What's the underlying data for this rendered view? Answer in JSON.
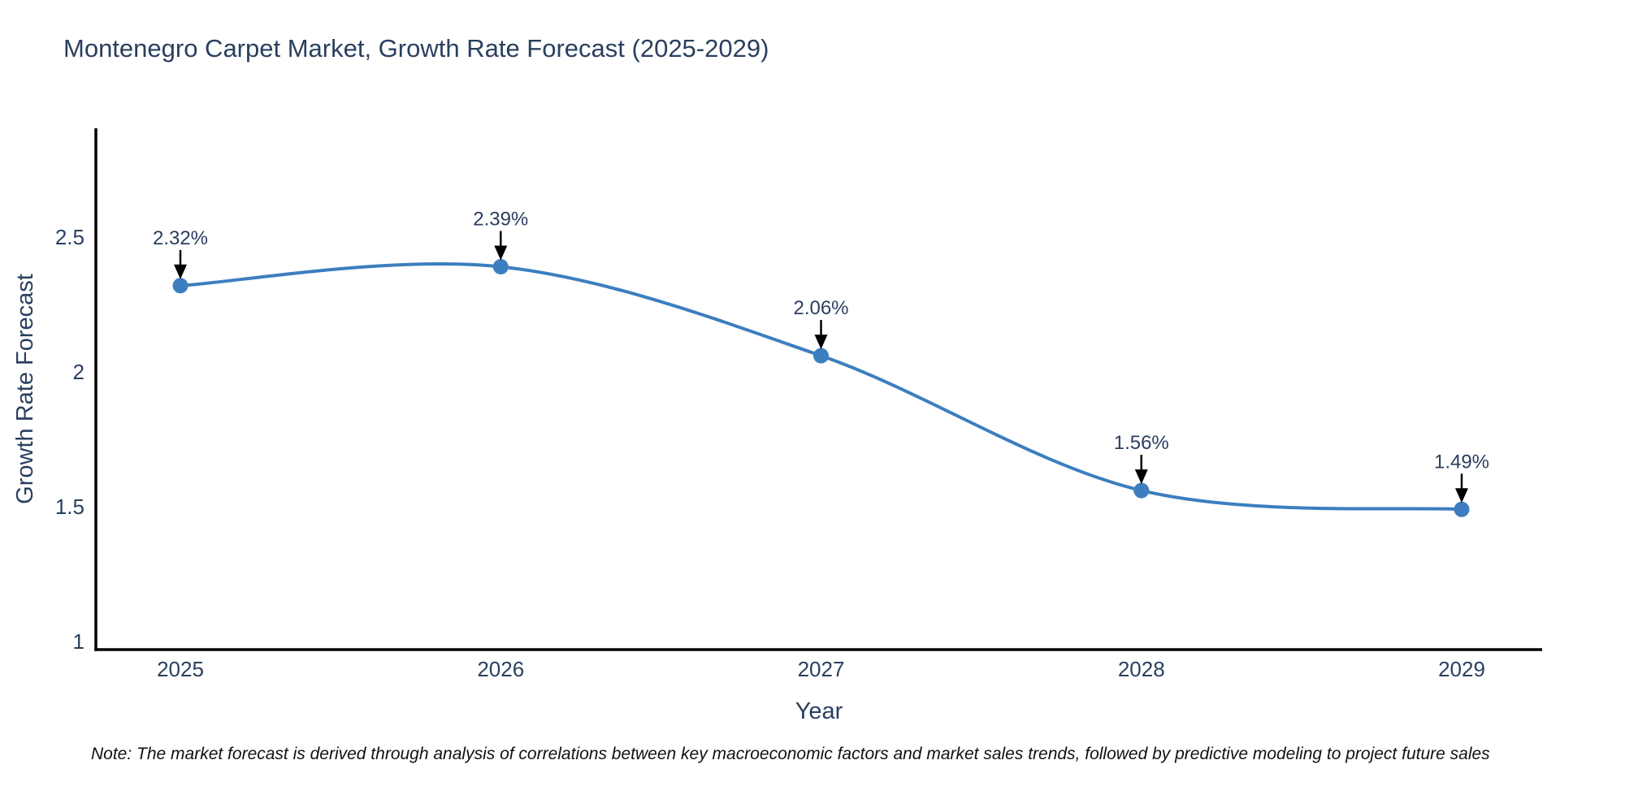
{
  "title": "Montenegro Carpet Market, Growth Rate Forecast (2025-2029)",
  "note": "Note: The market forecast is derived through analysis of correlations between key macroeconomic factors and market sales trends, followed by predictive modeling to project future sales",
  "chart_data": {
    "type": "line",
    "title": "Montenegro Carpet Market, Growth Rate Forecast (2025-2029)",
    "xlabel": "Year",
    "ylabel": "Growth Rate Forecast",
    "x": [
      2025,
      2026,
      2027,
      2028,
      2029
    ],
    "series": [
      {
        "name": "Growth Rate Forecast",
        "values": [
          2.32,
          2.39,
          2.06,
          1.56,
          1.49
        ]
      }
    ],
    "point_labels": [
      "2.32%",
      "2.39%",
      "2.06%",
      "1.56%",
      "1.49%"
    ],
    "x_ticks": [
      "2025",
      "2026",
      "2027",
      "2028",
      "2029"
    ],
    "y_ticks": [
      1,
      1.5,
      2,
      2.5
    ],
    "xlim": [
      2024.74,
      2029.26
    ],
    "ylim": [
      0.97,
      2.9
    ],
    "line_shape": "spline",
    "grid": false,
    "legend": "none",
    "colors": {
      "line": "#3c7ebf",
      "marker": "#3c7ebf",
      "axis": "#000000",
      "text": "#2a3f5f",
      "annotation_arrow": "#000000"
    }
  }
}
